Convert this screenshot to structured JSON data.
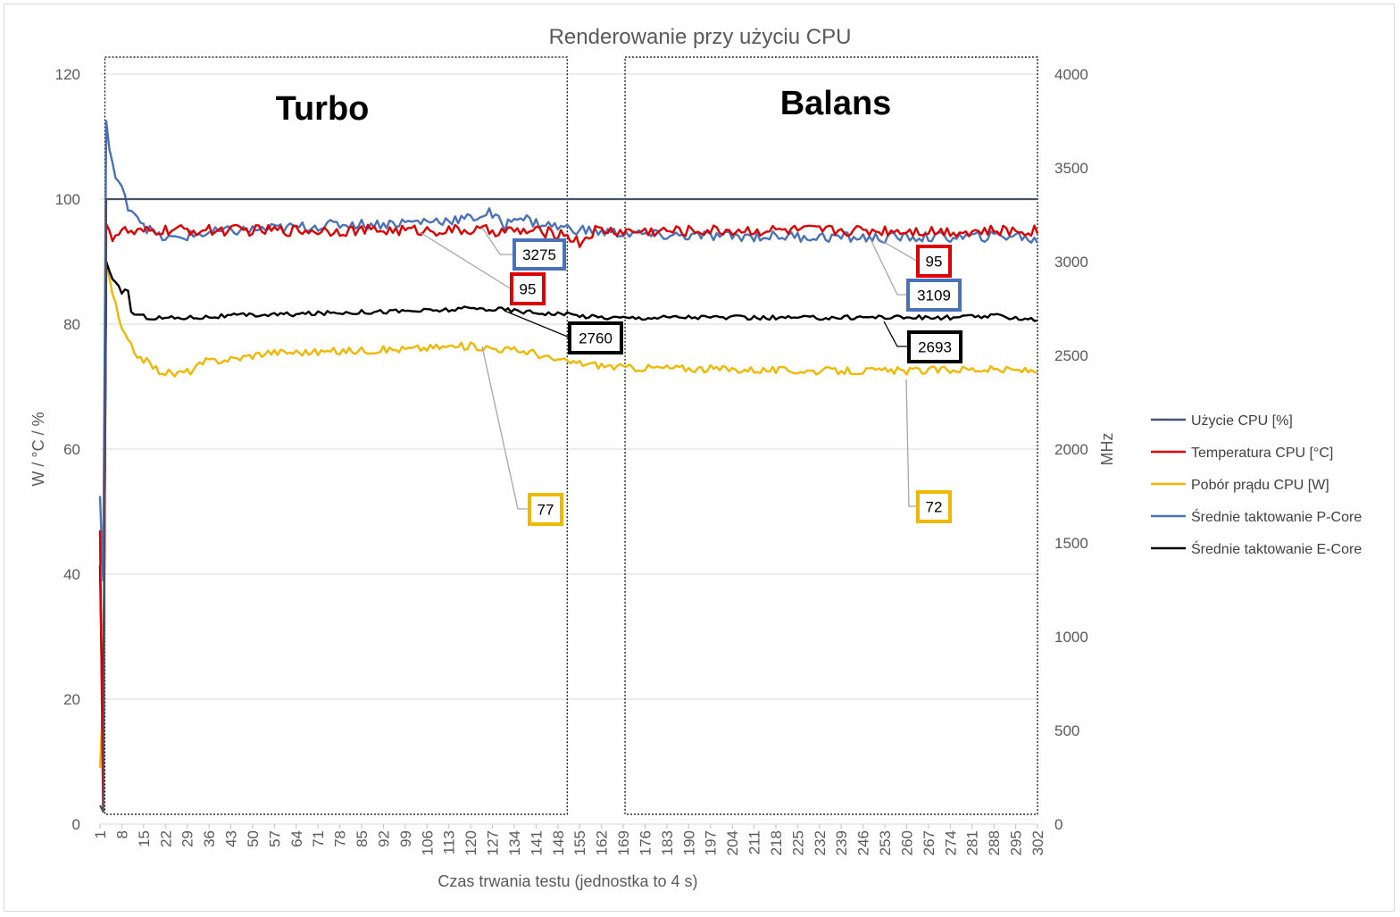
{
  "chart_data": {
    "type": "line",
    "title": "Renderowanie przy użyciu CPU",
    "xlabel": "Czas trwania testu (jednostka to 4 s)",
    "ylabel_left": "W / °C / %",
    "ylabel_right": "MHz",
    "x_range": [
      1,
      302
    ],
    "ylim_left": [
      0,
      120
    ],
    "ylim_right": [
      0,
      4000
    ],
    "left_ticks": [
      "0",
      "20",
      "40",
      "60",
      "80",
      "100",
      "120"
    ],
    "right_ticks": [
      "0",
      "500",
      "1000",
      "1500",
      "2000",
      "2500",
      "3000",
      "3500",
      "4000"
    ],
    "x_ticks": [
      "1",
      "8",
      "15",
      "22",
      "29",
      "36",
      "43",
      "50",
      "57",
      "64",
      "71",
      "78",
      "85",
      "92",
      "99",
      "106",
      "113",
      "120",
      "127",
      "134",
      "141",
      "148",
      "155",
      "162",
      "169",
      "176",
      "183",
      "190",
      "197",
      "204",
      "211",
      "218",
      "225",
      "232",
      "239",
      "246",
      "253",
      "260",
      "267",
      "274",
      "281",
      "288",
      "295",
      "302"
    ],
    "grid": "horizontal",
    "legend_position": "right",
    "sections": [
      {
        "label": "Turbo",
        "x_start": 2,
        "x_end": 151
      },
      {
        "label": "Balans",
        "x_start": 169,
        "x_end": 302
      }
    ],
    "series": [
      {
        "name": "Użycie CPU [%]",
        "axis": "left",
        "color": "#44546a",
        "points": [
          [
            1,
            3
          ],
          [
            2,
            2
          ],
          [
            3,
            100
          ],
          [
            302,
            100
          ]
        ]
      },
      {
        "name": "Temperatura CPU [°C]",
        "axis": "left",
        "color": "#e00000",
        "points": [
          [
            1,
            47
          ],
          [
            2,
            2
          ],
          [
            3,
            96
          ],
          [
            5,
            94
          ],
          [
            8,
            95
          ],
          [
            12,
            94.5
          ],
          [
            20,
            95
          ],
          [
            40,
            95
          ],
          [
            60,
            95
          ],
          [
            80,
            95
          ],
          [
            100,
            95
          ],
          [
            120,
            95
          ],
          [
            140,
            94.8
          ],
          [
            150,
            94.5
          ],
          [
            155,
            93
          ],
          [
            160,
            95
          ],
          [
            170,
            94.8
          ],
          [
            200,
            95
          ],
          [
            230,
            95
          ],
          [
            260,
            95
          ],
          [
            280,
            94.8
          ],
          [
            302,
            95
          ]
        ]
      },
      {
        "name": "Pobór prądu CPU [W]",
        "axis": "left",
        "color": "#f0b800",
        "points": [
          [
            1,
            9
          ],
          [
            2,
            20
          ],
          [
            3,
            90
          ],
          [
            5,
            85
          ],
          [
            8,
            79
          ],
          [
            12,
            75.5
          ],
          [
            16,
            74
          ],
          [
            20,
            72.5
          ],
          [
            25,
            72
          ],
          [
            30,
            72.5
          ],
          [
            35,
            74
          ],
          [
            45,
            74.5
          ],
          [
            55,
            75.5
          ],
          [
            70,
            75.5
          ],
          [
            85,
            75.8
          ],
          [
            100,
            76
          ],
          [
            110,
            76.3
          ],
          [
            120,
            76.5
          ],
          [
            130,
            76
          ],
          [
            140,
            75.5
          ],
          [
            145,
            74.5
          ],
          [
            150,
            74
          ],
          [
            160,
            73.5
          ],
          [
            170,
            73
          ],
          [
            180,
            73
          ],
          [
            200,
            72.8
          ],
          [
            230,
            72.5
          ],
          [
            260,
            72.5
          ],
          [
            280,
            72.8
          ],
          [
            302,
            72.5
          ]
        ]
      },
      {
        "name": "Średnie taktowanie P-Core",
        "axis": "right",
        "color": "#4a72b8",
        "points": [
          [
            1,
            1750
          ],
          [
            2,
            1300
          ],
          [
            3,
            3750
          ],
          [
            4,
            3600
          ],
          [
            6,
            3450
          ],
          [
            8,
            3380
          ],
          [
            10,
            3300
          ],
          [
            13,
            3250
          ],
          [
            16,
            3180
          ],
          [
            20,
            3130
          ],
          [
            25,
            3120
          ],
          [
            30,
            3140
          ],
          [
            40,
            3160
          ],
          [
            50,
            3170
          ],
          [
            60,
            3180
          ],
          [
            70,
            3190
          ],
          [
            80,
            3200
          ],
          [
            90,
            3200
          ],
          [
            100,
            3210
          ],
          [
            110,
            3220
          ],
          [
            120,
            3230
          ],
          [
            126,
            3260
          ],
          [
            131,
            3190
          ],
          [
            135,
            3250
          ],
          [
            140,
            3210
          ],
          [
            150,
            3180
          ],
          [
            160,
            3160
          ],
          [
            170,
            3150
          ],
          [
            180,
            3140
          ],
          [
            200,
            3135
          ],
          [
            220,
            3135
          ],
          [
            240,
            3130
          ],
          [
            250,
            3125
          ],
          [
            260,
            3130
          ],
          [
            280,
            3130
          ],
          [
            295,
            3140
          ],
          [
            302,
            3110
          ]
        ]
      },
      {
        "name": "Średnie taktowanie E-Core",
        "axis": "right",
        "color": "#000000",
        "points": [
          [
            1,
            1380
          ],
          [
            2,
            400
          ],
          [
            3,
            3000
          ],
          [
            5,
            2900
          ],
          [
            8,
            2840
          ],
          [
            10,
            2850
          ],
          [
            11,
            2730
          ],
          [
            14,
            2710
          ],
          [
            18,
            2700
          ],
          [
            25,
            2700
          ],
          [
            35,
            2705
          ],
          [
            50,
            2715
          ],
          [
            65,
            2720
          ],
          [
            80,
            2730
          ],
          [
            95,
            2735
          ],
          [
            110,
            2740
          ],
          [
            120,
            2750
          ],
          [
            130,
            2745
          ],
          [
            140,
            2730
          ],
          [
            150,
            2720
          ],
          [
            160,
            2705
          ],
          [
            170,
            2700
          ],
          [
            190,
            2705
          ],
          [
            210,
            2700
          ],
          [
            230,
            2700
          ],
          [
            250,
            2705
          ],
          [
            270,
            2700
          ],
          [
            290,
            2710
          ],
          [
            302,
            2690
          ]
        ]
      }
    ],
    "annotations": [
      {
        "text": "3275",
        "series": "Średnie taktowanie P-Core",
        "color": "#4a72b8"
      },
      {
        "text": "95",
        "series": "Temperatura CPU [°C]",
        "color": "#e00000"
      },
      {
        "text": "2760",
        "series": "Średnie taktowanie E-Core",
        "color": "#000000"
      },
      {
        "text": "77",
        "series": "Pobór prądu CPU [W]",
        "color": "#f0b800"
      },
      {
        "text": "95",
        "series": "Temperatura CPU [°C]",
        "color": "#e00000"
      },
      {
        "text": "3109",
        "series": "Średnie taktowanie P-Core",
        "color": "#4a72b8"
      },
      {
        "text": "2693",
        "series": "Średnie taktowanie E-Core",
        "color": "#000000"
      },
      {
        "text": "72",
        "series": "Pobór prądu CPU [W]",
        "color": "#f0b800"
      }
    ]
  }
}
